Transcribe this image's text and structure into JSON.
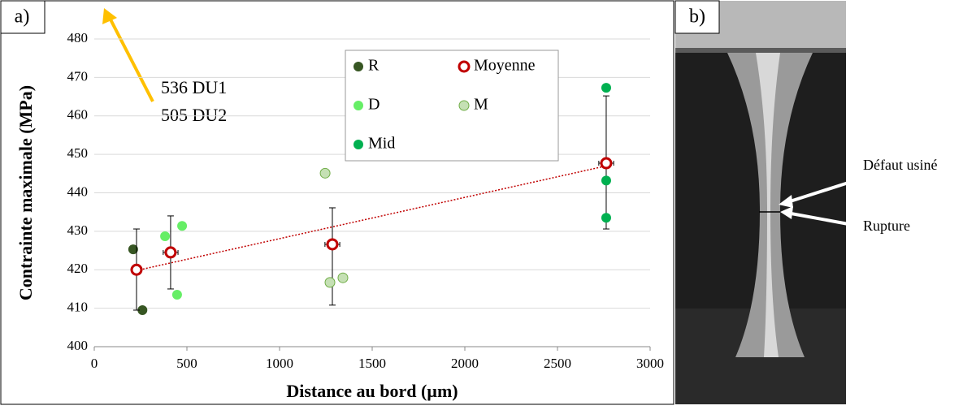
{
  "panel_a": {
    "label": "a)"
  },
  "chart_data": {
    "type": "scatter",
    "x_label": "Distance au bord (µm)",
    "y_label": "Contrainte maximale (MPa)",
    "xlim": [
      0,
      3000
    ],
    "ylim": [
      400,
      480
    ],
    "xticks": [
      0,
      500,
      1000,
      1500,
      2000,
      2500,
      3000
    ],
    "yticks": [
      400,
      410,
      420,
      430,
      440,
      450,
      460,
      470,
      480
    ],
    "annotation": [
      "536 DU1",
      "505 DU2"
    ],
    "series": [
      {
        "name": "R",
        "color": "#375623",
        "x": [
          210,
          260
        ],
        "values": [
          425.3,
          409.5
        ]
      },
      {
        "name": "Moyenne",
        "color": "#c00000",
        "hollow": true,
        "x": [
          228,
          412,
          1285,
          2763
        ],
        "values": [
          420,
          424.5,
          426.6,
          447.7
        ],
        "error_low": [
          409.5,
          415,
          410.8,
          430.6
        ],
        "error_high": [
          430.6,
          434,
          436.1,
          465.2
        ],
        "xerr": [
          0,
          40,
          40,
          40
        ]
      },
      {
        "name": "D",
        "color": "#66ee66",
        "x": [
          382,
          474,
          447
        ],
        "values": [
          428.7,
          431.4,
          413.5
        ]
      },
      {
        "name": "M",
        "color": "#c5e0b4",
        "outline": "#70ad47",
        "x": [
          1246,
          1272,
          1342
        ],
        "values": [
          445.1,
          416.7,
          417.9
        ]
      },
      {
        "name": "Mid",
        "color": "#00b050",
        "x": [
          2763,
          2763,
          2763
        ],
        "values": [
          467.3,
          443.2,
          433.5
        ]
      }
    ],
    "trend": {
      "color": "#c00000",
      "x": [
        228,
        2763
      ],
      "values": [
        419.8,
        447
      ]
    }
  },
  "panel_b": {
    "label": "b)",
    "annotations": [
      "Défaut usiné",
      "Rupture"
    ]
  }
}
